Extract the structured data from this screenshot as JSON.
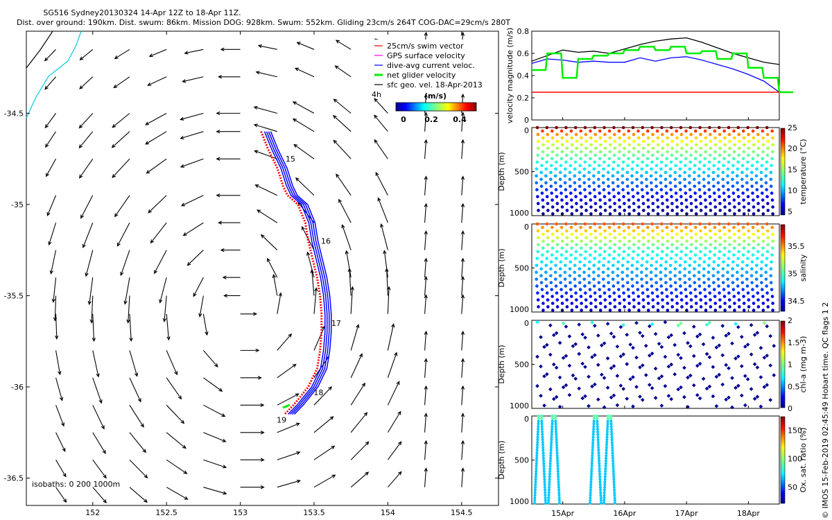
{
  "header": {
    "title_line1": "SG516 Sydney20130324 14-Apr 12Z to 18-Apr 11Z.",
    "title_line2": "Dist. over ground: 190km. Dist. swum: 86km. Mission DOG: 928km. Swum: 552km. Gliding 23cm/s 264T COG-DAC=29cm/s 280T"
  },
  "legend": {
    "items": [
      {
        "label": "25cm/s swim vector",
        "color": "#ff0000",
        "style": "line"
      },
      {
        "label": "GPS surface velocity",
        "color": "#ff00ff",
        "style": "line"
      },
      {
        "label": "dive-avg current veloc.",
        "color": "#0000ff",
        "style": "line"
      },
      {
        "label": "net glider velocity",
        "color": "#00ee00",
        "style": "thick"
      },
      {
        "label": "sfc geo. vel. 18-Apr-2013",
        "color": "#000000",
        "style": "line"
      }
    ],
    "arrow_label": "4h"
  },
  "colorbar_main": {
    "title": "(m/s)",
    "ticks": [
      "0",
      "0.2",
      "0.4"
    ]
  },
  "side_credit": "© IMOS 15-Feb-2019 02:45:49 Hobart time. QC flags 1  2",
  "colors": {
    "coast": "#00c8e0",
    "track_dac": "#0000ff",
    "track_swim": "#ff0000",
    "net_glider": "#00ee00",
    "arrows": "#000000"
  },
  "chart_data": [
    {
      "type": "scatter",
      "title": "",
      "xlabel": "",
      "ylabel": "",
      "xlim": [
        151.55,
        154.75
      ],
      "ylim": [
        -36.65,
        -34.05
      ],
      "x_ticks": [
        "152",
        "152.5",
        "153",
        "153.5",
        "154",
        "154.5"
      ],
      "y_ticks": [
        "-34.5",
        "-35",
        "-35.5",
        "-36",
        "-36.5"
      ],
      "isobaths_label": "isobaths: 0   200   1000m",
      "glider_track": {
        "lon": [
          153.15,
          153.2,
          153.26,
          153.3,
          153.33,
          153.4,
          153.45,
          153.47,
          153.5,
          153.53,
          153.55,
          153.56,
          153.56,
          153.55,
          153.53,
          153.5,
          153.47,
          153.42,
          153.37,
          153.31
        ],
        "lat": [
          -34.6,
          -34.7,
          -34.8,
          -34.9,
          -34.95,
          -35.0,
          -35.1,
          -35.2,
          -35.3,
          -35.4,
          -35.5,
          -35.6,
          -35.7,
          -35.8,
          -35.9,
          -35.95,
          -36.0,
          -36.05,
          -36.1,
          -36.15
        ]
      },
      "day_labels": [
        {
          "label": "15",
          "lon": 153.26,
          "lat": -34.75
        },
        {
          "label": "16",
          "lon": 153.5,
          "lat": -35.2
        },
        {
          "label": "17",
          "lon": 153.57,
          "lat": -35.65
        },
        {
          "label": "18",
          "lon": 153.45,
          "lat": -36.03
        },
        {
          "label": "19",
          "lon": 153.2,
          "lat": -36.18
        }
      ],
      "surface_velocity_field": {
        "lon": [
          151.5,
          151.75,
          152.0,
          152.25,
          152.5,
          152.75,
          153.0,
          153.25,
          153.5,
          153.75,
          154.0,
          154.25,
          154.5,
          154.75
        ],
        "lat": [
          -34.15,
          -34.3,
          -34.5,
          -34.6,
          -34.75,
          -34.95,
          -35.1,
          -35.25,
          -35.4,
          -35.5,
          -35.6,
          -35.8,
          -35.95,
          -36.1,
          -36.25,
          -36.4,
          -36.55
        ]
      }
    },
    {
      "type": "line",
      "ylabel": "velocity magnitude (m/s)",
      "ylim": [
        0,
        0.8
      ],
      "y_ticks": [
        "0",
        "0.2",
        "0.4",
        "0.6",
        "0.8"
      ],
      "x": [
        14.5,
        14.75,
        15.0,
        15.25,
        15.5,
        15.75,
        16.0,
        16.25,
        16.5,
        16.75,
        17.0,
        17.25,
        17.5,
        17.75,
        18.0,
        18.25,
        18.5
      ],
      "series": [
        {
          "color": "#000000",
          "values": [
            0.53,
            0.58,
            0.63,
            0.61,
            0.62,
            0.6,
            0.64,
            0.68,
            0.71,
            0.73,
            0.74,
            0.7,
            0.65,
            0.6,
            0.56,
            0.52,
            0.5
          ]
        },
        {
          "color": "#0000ff",
          "values": [
            0.51,
            0.55,
            0.54,
            0.52,
            0.53,
            0.52,
            0.52,
            0.56,
            0.53,
            0.56,
            0.57,
            0.54,
            0.5,
            0.46,
            0.41,
            0.35,
            0.25
          ]
        },
        {
          "color": "#00ee00",
          "values": [
            0.45,
            0.6,
            0.38,
            0.55,
            0.58,
            0.6,
            0.63,
            0.66,
            0.63,
            0.66,
            0.6,
            0.62,
            0.55,
            0.6,
            0.47,
            0.38,
            0.25
          ]
        },
        {
          "color": "#ff0000",
          "values": [
            0.25,
            0.25,
            0.25,
            0.25,
            0.25,
            0.25,
            0.25,
            0.25,
            0.25,
            0.25,
            0.25,
            0.25,
            0.25,
            0.25,
            0.25,
            0.25,
            0.25
          ]
        }
      ]
    },
    {
      "type": "scatter",
      "ylabel": "Depth (m)",
      "ylim": [
        0,
        1000
      ],
      "y_ticks": [
        "0",
        "500",
        "1000"
      ],
      "x_ticks": [
        "15Apr",
        "16Apr",
        "17Apr",
        "18Apr"
      ],
      "xlim": [
        14.5,
        18.5
      ],
      "dives": 25,
      "max_depth": 980,
      "panels": [
        {
          "name": "temperature",
          "cbar_label": "temperature (°C)",
          "cbar_ticks": [
            "5",
            "10",
            "15",
            "20",
            "25"
          ],
          "surface": 24,
          "bottom": 5
        },
        {
          "name": "salinity",
          "cbar_label": "salinity",
          "cbar_ticks": [
            "34.5",
            "35",
            "35.5"
          ],
          "surface": 35.6,
          "bottom": 34.4
        },
        {
          "name": "chl-a",
          "cbar_label": "chl-a (mg m-3)",
          "cbar_ticks": [
            "0",
            "0.5",
            "1",
            "1.5",
            "2"
          ]
        },
        {
          "name": "oxygen",
          "cbar_label": "Ox. sat. ratio (%)",
          "cbar_ticks": [
            "50",
            "100",
            "150"
          ]
        }
      ]
    }
  ]
}
